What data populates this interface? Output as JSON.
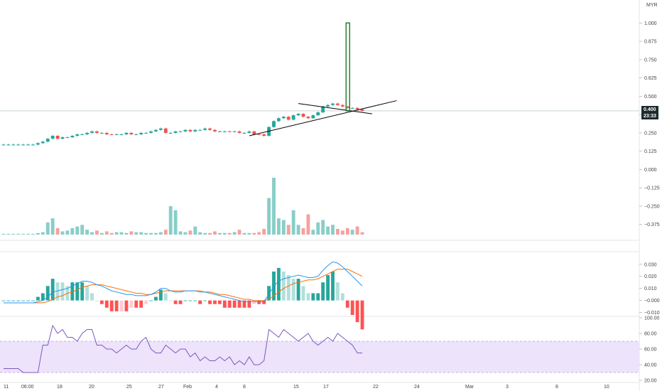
{
  "currency": "MYR",
  "price_badge": {
    "price": "0.400",
    "countdown": "23:33"
  },
  "colors": {
    "up": "#26a69a",
    "down": "#ef5350",
    "macd_line": "#2196f3",
    "signal_line": "#ff6d00",
    "rsi_line": "#7e57c2",
    "rsi_band": "#ede3fb",
    "drawing": "#000000",
    "highlight": "#2e7d32"
  },
  "chart_data": [
    {
      "type": "candlestick",
      "panel": "price",
      "y_ticks": [
        "1.000",
        "0.875",
        "0.750",
        "0.625",
        "0.500",
        "0.375",
        "0.250",
        "0.125",
        "0.000",
        "−0.125",
        "−0.250",
        "−0.375"
      ],
      "ylim": [
        -0.42,
        1.05
      ],
      "last_price": 0.4,
      "x_ticks": [
        "11",
        "06:00",
        "18",
        "20",
        "25",
        "27",
        "Feb",
        "4",
        "8",
        "15",
        "17",
        "22",
        "24",
        "Mar",
        "3",
        "8",
        "10"
      ],
      "close": [
        0.17,
        0.17,
        0.17,
        0.17,
        0.17,
        0.17,
        0.17,
        0.18,
        0.19,
        0.21,
        0.23,
        0.21,
        0.22,
        0.22,
        0.23,
        0.24,
        0.24,
        0.25,
        0.26,
        0.25,
        0.25,
        0.24,
        0.24,
        0.24,
        0.24,
        0.25,
        0.24,
        0.24,
        0.25,
        0.25,
        0.26,
        0.27,
        0.28,
        0.25,
        0.25,
        0.26,
        0.26,
        0.27,
        0.26,
        0.27,
        0.27,
        0.28,
        0.27,
        0.26,
        0.26,
        0.26,
        0.26,
        0.26,
        0.25,
        0.25,
        0.26,
        0.24,
        0.24,
        0.23,
        0.29,
        0.33,
        0.35,
        0.36,
        0.34,
        0.37,
        0.38,
        0.36,
        0.35,
        0.37,
        0.39,
        0.43,
        0.44,
        0.45,
        0.44,
        0.43,
        0.42,
        0.42,
        0.41,
        0.4
      ],
      "annotations": {
        "trendlines": [
          {
            "from": [
              50,
              0.23
            ],
            "to": [
              80,
              0.47
            ]
          },
          {
            "from": [
              60,
              0.45
            ],
            "to": [
              75,
              0.38
            ]
          }
        ],
        "highlight_box": {
          "from_index": 70,
          "price_range": [
            0.4,
            1.0
          ]
        }
      }
    },
    {
      "type": "bar",
      "panel": "volume",
      "values": [
        1,
        1,
        1,
        1,
        1,
        1,
        1,
        2,
        3,
        15,
        20,
        8,
        4,
        5,
        8,
        10,
        12,
        6,
        3,
        5,
        2,
        4,
        2,
        3,
        3,
        2,
        4,
        3,
        3,
        2,
        2,
        2,
        3,
        6,
        35,
        30,
        4,
        3,
        5,
        10,
        3,
        2,
        2,
        4,
        2,
        2,
        2,
        3,
        6,
        2,
        2,
        2,
        3,
        7,
        45,
        70,
        20,
        18,
        12,
        30,
        12,
        8,
        25,
        6,
        15,
        18,
        10,
        12,
        7,
        5,
        8,
        6,
        10,
        3
      ],
      "directions": [
        1,
        1,
        1,
        1,
        1,
        1,
        1,
        1,
        1,
        1,
        1,
        -1,
        1,
        1,
        1,
        1,
        1,
        1,
        1,
        -1,
        1,
        -1,
        -1,
        1,
        1,
        1,
        -1,
        1,
        1,
        1,
        1,
        1,
        1,
        -1,
        1,
        1,
        1,
        1,
        -1,
        1,
        1,
        1,
        -1,
        -1,
        1,
        1,
        -1,
        1,
        -1,
        1,
        1,
        -1,
        -1,
        -1,
        1,
        1,
        1,
        1,
        -1,
        1,
        1,
        -1,
        -1,
        1,
        1,
        1,
        1,
        1,
        -1,
        -1,
        -1,
        1,
        -1,
        -1
      ]
    },
    {
      "type": "line",
      "panel": "macd",
      "y_ticks": [
        "0.030",
        "0.020",
        "0.010",
        "−0.000",
        "−0.010"
      ],
      "ylim": [
        -0.012,
        0.034
      ],
      "series": [
        {
          "values": [
            -0.002,
            -0.002,
            -0.002,
            -0.002,
            -0.002,
            -0.002,
            -0.002,
            -0.001,
            0.0,
            0.003,
            0.007,
            0.008,
            0.009,
            0.01,
            0.012,
            0.014,
            0.016,
            0.016,
            0.015,
            0.013,
            0.012,
            0.01,
            0.008,
            0.007,
            0.006,
            0.005,
            0.005,
            0.004,
            0.004,
            0.004,
            0.005,
            0.007,
            0.01,
            0.01,
            0.008,
            0.007,
            0.007,
            0.008,
            0.008,
            0.008,
            0.007,
            0.007,
            0.006,
            0.005,
            0.004,
            0.003,
            0.002,
            0.001,
            0.0,
            -0.001,
            -0.001,
            -0.001,
            -0.001,
            -0.001,
            0.005,
            0.012,
            0.016,
            0.018,
            0.019,
            0.02,
            0.021,
            0.02,
            0.019,
            0.019,
            0.02,
            0.025,
            0.029,
            0.032,
            0.031,
            0.028,
            0.024,
            0.02,
            0.016,
            0.012
          ]
        },
        {
          "values": [
            -0.002,
            -0.002,
            -0.002,
            -0.002,
            -0.002,
            -0.002,
            -0.002,
            -0.002,
            -0.002,
            -0.001,
            0.001,
            0.003,
            0.004,
            0.006,
            0.007,
            0.009,
            0.011,
            0.012,
            0.013,
            0.013,
            0.013,
            0.012,
            0.011,
            0.01,
            0.009,
            0.008,
            0.007,
            0.006,
            0.006,
            0.005,
            0.005,
            0.006,
            0.007,
            0.008,
            0.008,
            0.008,
            0.008,
            0.008,
            0.008,
            0.008,
            0.008,
            0.007,
            0.007,
            0.006,
            0.005,
            0.005,
            0.004,
            0.003,
            0.002,
            0.001,
            0.001,
            0.0,
            0.0,
            0.0,
            0.001,
            0.004,
            0.007,
            0.01,
            0.012,
            0.014,
            0.015,
            0.016,
            0.017,
            0.017,
            0.018,
            0.02,
            0.022,
            0.024,
            0.026,
            0.026,
            0.026,
            0.024,
            0.022,
            0.02
          ]
        }
      ]
    },
    {
      "type": "line",
      "panel": "rsi",
      "y_ticks": [
        "100.00",
        "80.00",
        "60.00",
        "40.00",
        "20.00"
      ],
      "ylim": [
        20,
        100
      ],
      "band": [
        30,
        70
      ],
      "series": [
        {
          "values": [
            35,
            35,
            35,
            35,
            30,
            30,
            30,
            30,
            65,
            65,
            90,
            80,
            85,
            75,
            75,
            70,
            80,
            85,
            85,
            65,
            65,
            60,
            60,
            55,
            60,
            65,
            60,
            60,
            70,
            75,
            60,
            55,
            55,
            65,
            60,
            55,
            60,
            60,
            50,
            55,
            45,
            50,
            45,
            45,
            50,
            45,
            50,
            40,
            45,
            40,
            50,
            40,
            40,
            45,
            85,
            80,
            75,
            85,
            80,
            75,
            70,
            75,
            80,
            70,
            65,
            70,
            75,
            70,
            80,
            75,
            70,
            65,
            55,
            55
          ]
        }
      ]
    }
  ]
}
